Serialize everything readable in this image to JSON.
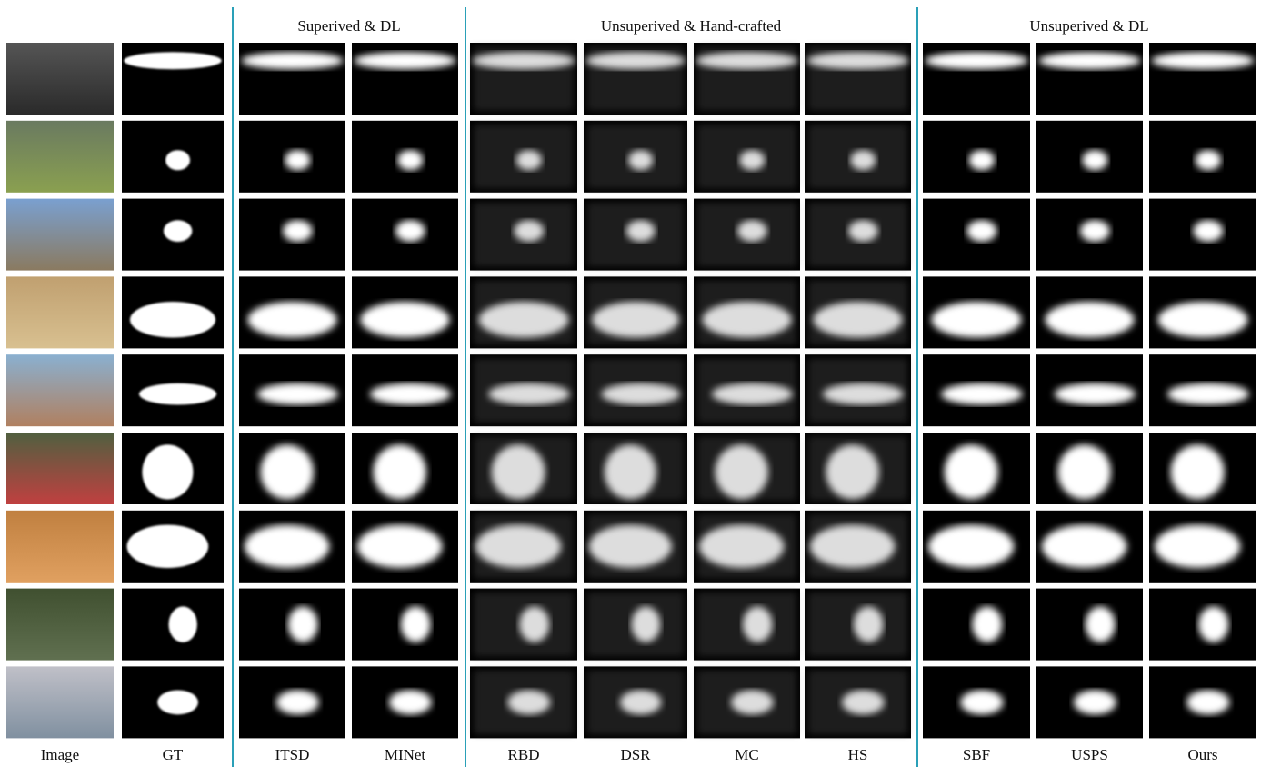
{
  "headers": [
    "Superived & DL",
    "Unsuperived & Hand-crafted",
    "Unsuperived & DL"
  ],
  "columns": [
    "Image",
    "GT",
    "ITSD",
    "MINet",
    "RBD",
    "DSR",
    "MC",
    "HS",
    "SBF",
    "USPS",
    "Ours"
  ]
}
